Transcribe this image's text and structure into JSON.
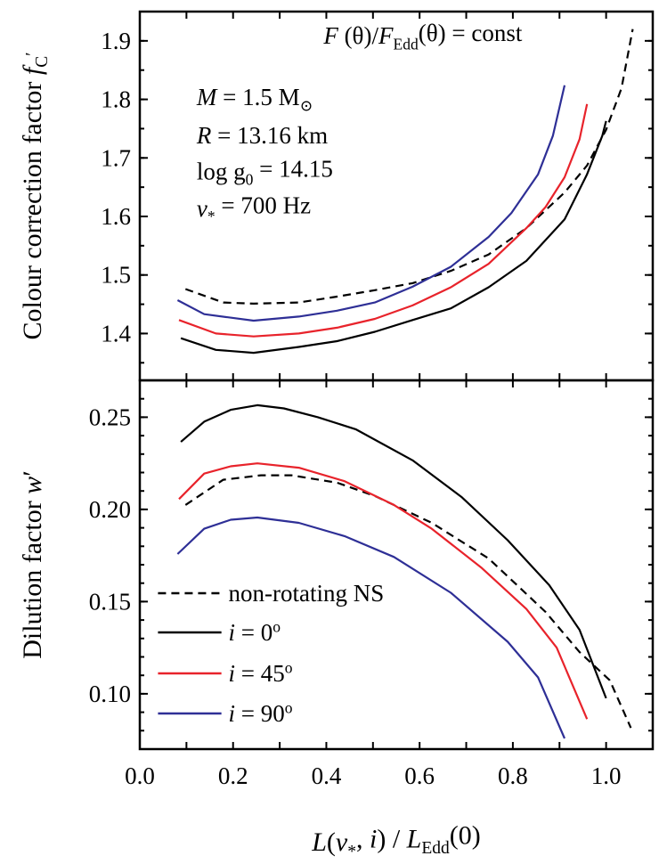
{
  "chart_data": {
    "type": "line",
    "x": {
      "label_parts": [
        [
          "L",
          "i"
        ],
        [
          "(",
          ""
        ],
        [
          "ν",
          "i"
        ],
        [
          "*",
          "sub"
        ],
        [
          ", ",
          ""
        ],
        [
          "i",
          "i"
        ],
        [
          ") / ",
          ""
        ],
        [
          "L",
          "i"
        ],
        [
          "Edd",
          "sub"
        ],
        [
          "(0)",
          ""
        ]
      ],
      "lim": [
        0,
        1.1
      ],
      "ticks": [
        0.0,
        0.2,
        0.4,
        0.6,
        0.8,
        1.0
      ],
      "tick_labels": [
        "0.0",
        "0.2",
        "0.4",
        "0.6",
        "0.8",
        "1.0"
      ],
      "minor_step": 0.1
    },
    "panels": [
      {
        "id": "colour-correction",
        "ylabel_parts": [
          [
            "Colour correction factor ",
            ""
          ],
          [
            "f",
            "i"
          ],
          [
            "C",
            "sub"
          ],
          [
            "′",
            "sup"
          ]
        ],
        "ylim": [
          1.32,
          1.95
        ],
        "yticks": [
          1.4,
          1.5,
          1.6,
          1.7,
          1.8,
          1.9
        ],
        "ytick_labels": [
          "1.4",
          "1.5",
          "1.6",
          "1.7",
          "1.8",
          "1.9"
        ],
        "minor_step": 0.05,
        "annotations": [
          {
            "parts": [
              [
                "F",
                "i"
              ],
              [
                " (θ)/",
                ""
              ],
              [
                "F",
                "i"
              ],
              [
                "Edd",
                "sub"
              ],
              [
                "(θ) = const",
                ""
              ]
            ],
            "x": 0.394,
            "y": 1.895
          },
          {
            "parts": [
              [
                "M",
                "i"
              ],
              [
                " = 1.5 M",
                ""
              ],
              [
                "⊙",
                "sub"
              ]
            ],
            "x": 0.122,
            "y": 1.79
          },
          {
            "parts": [
              [
                "R",
                "i"
              ],
              [
                " = 13.16 km",
                ""
              ]
            ],
            "x": 0.122,
            "y": 1.725
          },
          {
            "parts": [
              [
                "log g",
                ""
              ],
              [
                "0",
                "sub"
              ],
              [
                " = 14.15",
                ""
              ]
            ],
            "x": 0.122,
            "y": 1.663
          },
          {
            "parts": [
              [
                "ν",
                "i"
              ],
              [
                "*",
                "sub"
              ],
              [
                " = 700 Hz",
                ""
              ]
            ],
            "x": 0.122,
            "y": 1.6
          }
        ],
        "series": [
          {
            "key": "nonrot",
            "color": "#000000",
            "dash": true,
            "points": [
              [
                0.098,
                1.476
              ],
              [
                0.179,
                1.453
              ],
              [
                0.244,
                1.451
              ],
              [
                0.341,
                1.453
              ],
              [
                0.423,
                1.463
              ],
              [
                0.504,
                1.474
              ],
              [
                0.585,
                1.486
              ],
              [
                0.667,
                1.507
              ],
              [
                0.748,
                1.535
              ],
              [
                0.829,
                1.58
              ],
              [
                0.911,
                1.641
              ],
              [
                0.959,
                1.687
              ],
              [
                1.0,
                1.748
              ],
              [
                1.033,
                1.819
              ],
              [
                1.057,
                1.92
              ]
            ]
          },
          {
            "key": "i0",
            "color": "#000000",
            "dash": false,
            "points": [
              [
                0.088,
                1.392
              ],
              [
                0.163,
                1.372
              ],
              [
                0.244,
                1.367
              ],
              [
                0.341,
                1.377
              ],
              [
                0.423,
                1.387
              ],
              [
                0.504,
                1.403
              ],
              [
                0.585,
                1.423
              ],
              [
                0.667,
                1.443
              ],
              [
                0.748,
                1.479
              ],
              [
                0.829,
                1.524
              ],
              [
                0.911,
                1.595
              ],
              [
                0.959,
                1.672
              ],
              [
                0.992,
                1.738
              ],
              [
                1.0,
                1.763
              ]
            ]
          },
          {
            "key": "i45",
            "color": "#e8232b",
            "dash": false,
            "points": [
              [
                0.084,
                1.423
              ],
              [
                0.163,
                1.4
              ],
              [
                0.244,
                1.395
              ],
              [
                0.341,
                1.4
              ],
              [
                0.423,
                1.41
              ],
              [
                0.504,
                1.425
              ],
              [
                0.585,
                1.448
              ],
              [
                0.667,
                1.479
              ],
              [
                0.748,
                1.519
              ],
              [
                0.829,
                1.58
              ],
              [
                0.87,
                1.616
              ],
              [
                0.911,
                1.667
              ],
              [
                0.943,
                1.732
              ],
              [
                0.959,
                1.792
              ]
            ]
          },
          {
            "key": "i90",
            "color": "#2e2f96",
            "dash": false,
            "points": [
              [
                0.081,
                1.457
              ],
              [
                0.138,
                1.433
              ],
              [
                0.244,
                1.422
              ],
              [
                0.341,
                1.429
              ],
              [
                0.423,
                1.439
              ],
              [
                0.504,
                1.453
              ],
              [
                0.585,
                1.48
              ],
              [
                0.667,
                1.514
              ],
              [
                0.748,
                1.565
              ],
              [
                0.797,
                1.606
              ],
              [
                0.854,
                1.672
              ],
              [
                0.886,
                1.738
              ],
              [
                0.911,
                1.824
              ]
            ]
          }
        ]
      },
      {
        "id": "dilution",
        "ylabel_parts": [
          [
            "Dilution factor ",
            ""
          ],
          [
            "w",
            "i"
          ],
          [
            "′",
            ""
          ]
        ],
        "ylim": [
          0.07,
          0.27
        ],
        "yticks": [
          0.1,
          0.15,
          0.2,
          0.25
        ],
        "ytick_labels": [
          "0.10",
          "0.15",
          "0.20",
          "0.25"
        ],
        "minor_step": 0.01,
        "series": [
          {
            "key": "nonrot",
            "color": "#000000",
            "dash": true,
            "points": [
              [
                0.098,
                0.2024
              ],
              [
                0.179,
                0.2161
              ],
              [
                0.26,
                0.2185
              ],
              [
                0.325,
                0.2185
              ],
              [
                0.423,
                0.2145
              ],
              [
                0.504,
                0.2073
              ],
              [
                0.626,
                0.1927
              ],
              [
                0.748,
                0.1734
              ],
              [
                0.87,
                0.1444
              ],
              [
                0.943,
                0.1226
              ],
              [
                1.008,
                0.1073
              ],
              [
                1.053,
                0.0815
              ]
            ]
          },
          {
            "key": "i0",
            "color": "#000000",
            "dash": false,
            "points": [
              [
                0.088,
                0.2366
              ],
              [
                0.138,
                0.2476
              ],
              [
                0.195,
                0.254
              ],
              [
                0.252,
                0.2565
              ],
              [
                0.309,
                0.2548
              ],
              [
                0.382,
                0.25
              ],
              [
                0.463,
                0.2435
              ],
              [
                0.585,
                0.2266
              ],
              [
                0.691,
                0.2065
              ],
              [
                0.789,
                0.1833
              ],
              [
                0.878,
                0.1589
              ],
              [
                0.943,
                0.1347
              ],
              [
                1.0,
                0.0976
              ]
            ]
          },
          {
            "key": "i45",
            "color": "#e8232b",
            "dash": false,
            "points": [
              [
                0.084,
                0.2056
              ],
              [
                0.138,
                0.2194
              ],
              [
                0.195,
                0.2234
              ],
              [
                0.252,
                0.225
              ],
              [
                0.341,
                0.2226
              ],
              [
                0.439,
                0.2153
              ],
              [
                0.545,
                0.2024
              ],
              [
                0.626,
                0.1895
              ],
              [
                0.732,
                0.1685
              ],
              [
                0.829,
                0.146
              ],
              [
                0.894,
                0.125
              ],
              [
                0.959,
                0.0863
              ]
            ]
          },
          {
            "key": "i90",
            "color": "#2e2f96",
            "dash": false,
            "points": [
              [
                0.081,
                0.1758
              ],
              [
                0.138,
                0.1895
              ],
              [
                0.195,
                0.1944
              ],
              [
                0.252,
                0.1956
              ],
              [
                0.341,
                0.1927
              ],
              [
                0.439,
                0.1855
              ],
              [
                0.545,
                0.1742
              ],
              [
                0.667,
                0.1548
              ],
              [
                0.789,
                0.1282
              ],
              [
                0.854,
                0.1089
              ],
              [
                0.911,
                0.0758
              ]
            ]
          }
        ]
      }
    ],
    "legend": {
      "placement": "lower-left of bottom panel",
      "entries": [
        {
          "key": "nonrot",
          "color": "#000000",
          "dash": true,
          "parts": [
            [
              "non-rotating NS",
              ""
            ]
          ]
        },
        {
          "key": "i0",
          "color": "#000000",
          "dash": false,
          "parts": [
            [
              "i",
              "i"
            ],
            [
              " = 0",
              ""
            ],
            [
              "o",
              "sup"
            ]
          ]
        },
        {
          "key": "i45",
          "color": "#e8232b",
          "dash": false,
          "parts": [
            [
              "i",
              "i"
            ],
            [
              " = 45",
              ""
            ],
            [
              "o",
              "sup"
            ]
          ]
        },
        {
          "key": "i90",
          "color": "#2e2f96",
          "dash": false,
          "parts": [
            [
              "i",
              "i"
            ],
            [
              " = 90",
              ""
            ],
            [
              "o",
              "sup"
            ]
          ]
        }
      ]
    },
    "grid": false
  }
}
